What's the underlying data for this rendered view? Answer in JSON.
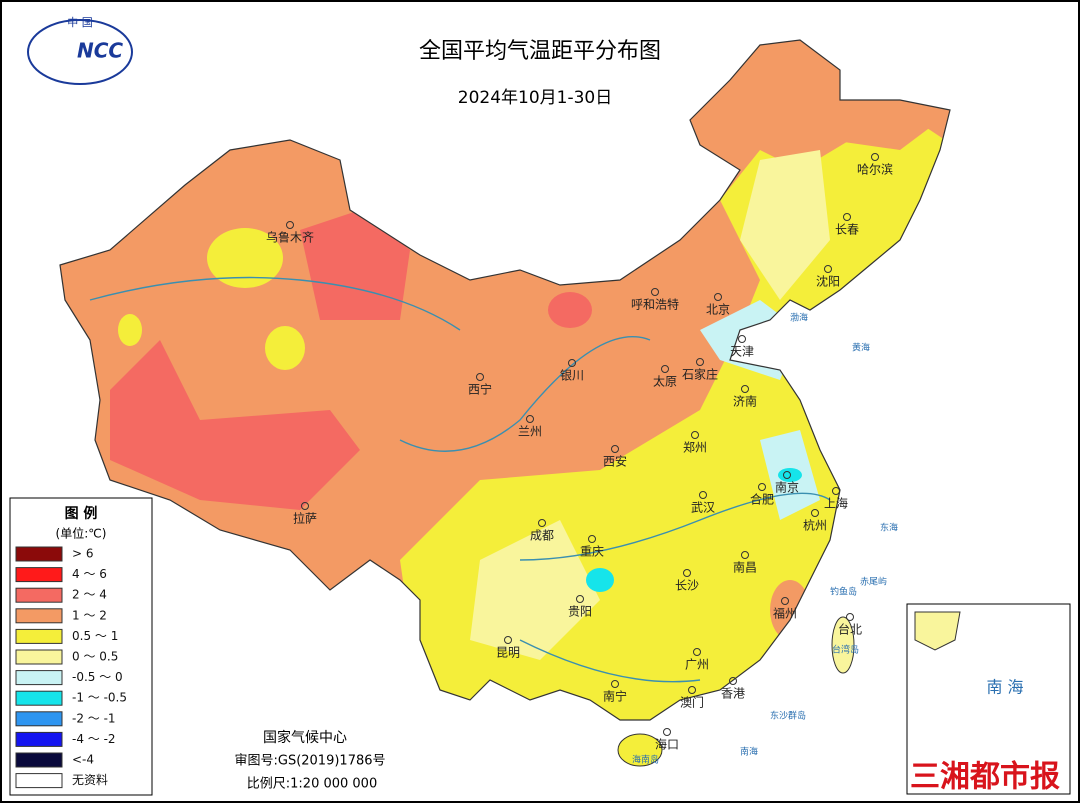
{
  "header": {
    "logo_top": "中 国",
    "logo_mark": "NCC",
    "title": "全国平均气温距平分布图",
    "subtitle": "2024年10月1-30日"
  },
  "legend": {
    "title": "图 例",
    "unit": "(单位:℃)",
    "items": [
      {
        "label": "> 6",
        "color": "#8b0a0a"
      },
      {
        "label": "4 ～ 6",
        "color": "#ff1a1a"
      },
      {
        "label": "2 ～ 4",
        "color": "#f46a62"
      },
      {
        "label": "1 ～ 2",
        "color": "#f39a64"
      },
      {
        "label": "0.5 ～ 1",
        "color": "#f4ee3a"
      },
      {
        "label": "0 ～ 0.5",
        "color": "#f9f59c"
      },
      {
        "label": "-0.5 ～ 0",
        "color": "#c9f3f4"
      },
      {
        "label": "-1 ～ -0.5",
        "color": "#16e4ea"
      },
      {
        "label": "-2 ～ -1",
        "color": "#2e95f0"
      },
      {
        "label": "-4 ～ -2",
        "color": "#1414f0"
      },
      {
        "label": "<-4",
        "color": "#0a0a3c"
      },
      {
        "label": "无资料",
        "color": "#ffffff"
      }
    ]
  },
  "cities": [
    "乌鲁木齐",
    "呼和浩特",
    "北京",
    "天津",
    "石家庄",
    "太原",
    "银川",
    "西宁",
    "兰州",
    "济南",
    "西安",
    "郑州",
    "哈尔滨",
    "长春",
    "沈阳",
    "南京",
    "上海",
    "合肥",
    "杭州",
    "武汉",
    "成都",
    "重庆",
    "拉萨",
    "长沙",
    "南昌",
    "福州",
    "台北",
    "贵阳",
    "昆明",
    "广州",
    "南宁",
    "香港",
    "澳门",
    "海口"
  ],
  "seas": [
    "渤海",
    "黄海",
    "东海",
    "南海"
  ],
  "islands": [
    "钓鱼岛",
    "赤尾屿",
    "台湾岛",
    "东沙群岛",
    "海南岛"
  ],
  "inset": {
    "label": "南 海"
  },
  "footer": {
    "org": "国家气候中心",
    "approval": "审图号:GS(2019)1786号",
    "scale": "比例尺:1:20 000 000"
  },
  "watermark": "三湘都市报"
}
